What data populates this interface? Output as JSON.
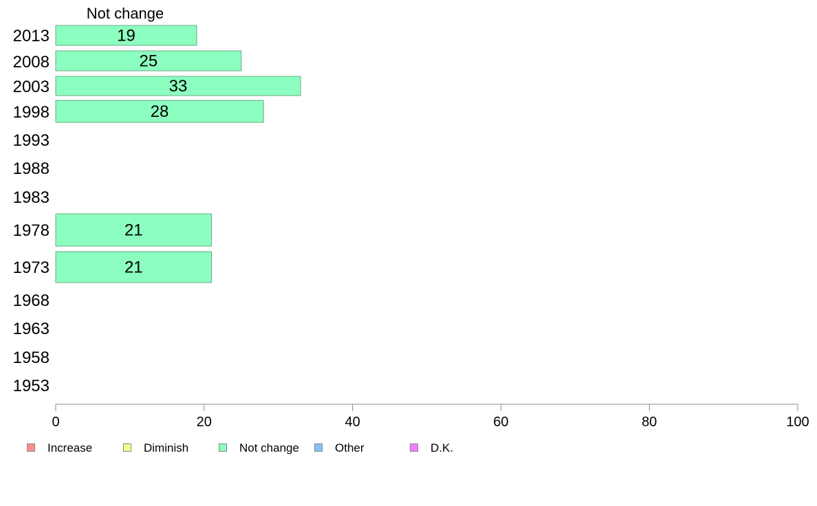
{
  "chart_data": {
    "type": "bar",
    "orientation": "horizontal",
    "title": "Not change",
    "categories": [
      "2013",
      "2008",
      "2003",
      "1998",
      "1993",
      "1988",
      "1983",
      "1978",
      "1973",
      "1968",
      "1963",
      "1958",
      "1953"
    ],
    "series": [
      {
        "name": "Not change",
        "values": [
          19,
          25,
          33,
          28,
          null,
          null,
          null,
          21,
          21,
          null,
          null,
          null,
          null
        ]
      }
    ],
    "data_labels": [
      "19",
      "25",
      "33",
      "28",
      "",
      "",
      "",
      "21",
      "21",
      "",
      "",
      "",
      ""
    ],
    "xlim": [
      0,
      100
    ],
    "xticks": [
      "0",
      "20",
      "40",
      "60",
      "80",
      "100"
    ],
    "grid": false,
    "legend_position": "bottom"
  },
  "colors": {
    "bar_fill": "#8cffc0",
    "bar_stroke": "#6aa886",
    "axis": "#888888"
  },
  "legend": [
    {
      "label": "Increase",
      "color": "#ff8c8c"
    },
    {
      "label": "Diminish",
      "color": "#eeff8c"
    },
    {
      "label": "Not change",
      "color": "#8cffc0"
    },
    {
      "label": "Other",
      "color": "#8cbcff"
    },
    {
      "label": "D.K.",
      "color": "#ee80ff"
    }
  ]
}
